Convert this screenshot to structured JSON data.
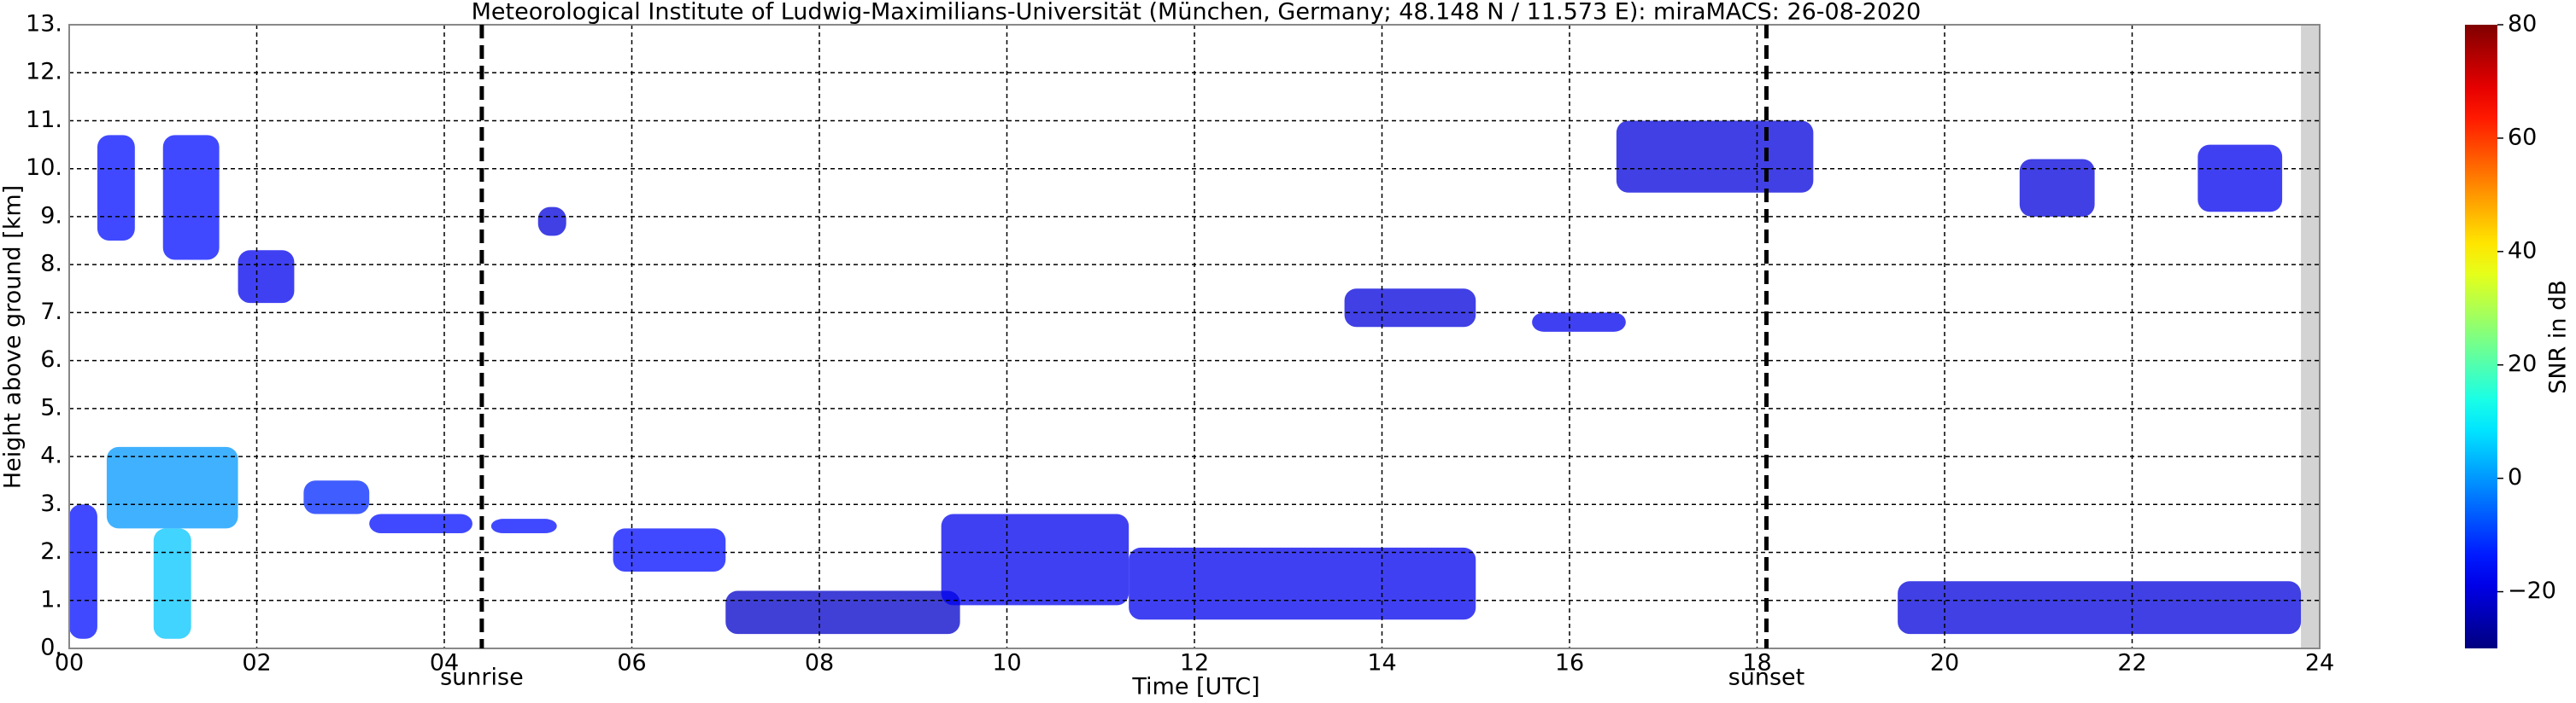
{
  "chart_data": {
    "type": "heatmap",
    "title": "Meteorological Institute of Ludwig-Maximilians-Universität (München, Germany; 48.148 N / 11.573 E):    miraMACS: 26-08-2020",
    "x_label": "Time [UTC]",
    "y_label": "Height above ground [km]",
    "colorbar_label": "SNR in dB",
    "xlim": [
      0,
      24
    ],
    "ylim": [
      0,
      13
    ],
    "clim": [
      -30,
      80
    ],
    "colormap": "jet",
    "grid": true,
    "xticks": [
      {
        "value": 0,
        "label": "00"
      },
      {
        "value": 2,
        "label": "02"
      },
      {
        "value": 4,
        "label": "04"
      },
      {
        "value": 6,
        "label": "06"
      },
      {
        "value": 8,
        "label": "08"
      },
      {
        "value": 10,
        "label": "10"
      },
      {
        "value": 12,
        "label": "12"
      },
      {
        "value": 14,
        "label": "14"
      },
      {
        "value": 16,
        "label": "16"
      },
      {
        "value": 18,
        "label": "18"
      },
      {
        "value": 20,
        "label": "20"
      },
      {
        "value": 22,
        "label": "22"
      },
      {
        "value": 24,
        "label": "24"
      }
    ],
    "yticks": [
      {
        "value": 0,
        "label": "0."
      },
      {
        "value": 1,
        "label": "1."
      },
      {
        "value": 2,
        "label": "2."
      },
      {
        "value": 3,
        "label": "3."
      },
      {
        "value": 4,
        "label": "4."
      },
      {
        "value": 5,
        "label": "5."
      },
      {
        "value": 6,
        "label": "6."
      },
      {
        "value": 7,
        "label": "7."
      },
      {
        "value": 8,
        "label": "8."
      },
      {
        "value": 9,
        "label": "9."
      },
      {
        "value": 10,
        "label": "10."
      },
      {
        "value": 11,
        "label": "11."
      },
      {
        "value": 12,
        "label": "12."
      },
      {
        "value": 13,
        "label": "13."
      }
    ],
    "cticks": [
      {
        "value": -20,
        "label": "−20"
      },
      0,
      20,
      40,
      60,
      80
    ],
    "markers": [
      {
        "label": "sunrise",
        "x": 4.4
      },
      {
        "label": "sunset",
        "x": 18.1
      }
    ],
    "no_data": [
      23.8,
      24
    ],
    "echoes": [
      {
        "x": [
          0.3,
          0.7
        ],
        "y": [
          8.5,
          10.7
        ],
        "snr": -15
      },
      {
        "x": [
          1.0,
          1.6
        ],
        "y": [
          8.1,
          10.7
        ],
        "snr": -15
      },
      {
        "x": [
          1.8,
          2.4
        ],
        "y": [
          7.2,
          8.3
        ],
        "snr": -18
      },
      {
        "x": [
          0.4,
          1.8
        ],
        "y": [
          2.5,
          4.2
        ],
        "snr": 0
      },
      {
        "x": [
          0.9,
          1.3
        ],
        "y": [
          0.2,
          2.5
        ],
        "snr": 5
      },
      {
        "x": [
          0.0,
          0.3
        ],
        "y": [
          0.2,
          3.0
        ],
        "snr": -15
      },
      {
        "x": [
          2.5,
          3.2
        ],
        "y": [
          2.8,
          3.5
        ],
        "snr": -12
      },
      {
        "x": [
          3.2,
          4.3
        ],
        "y": [
          2.4,
          2.8
        ],
        "snr": -15
      },
      {
        "x": [
          4.5,
          5.2
        ],
        "y": [
          2.4,
          2.7
        ],
        "snr": -15
      },
      {
        "x": [
          5.0,
          5.3
        ],
        "y": [
          8.6,
          9.2
        ],
        "snr": -20
      },
      {
        "x": [
          5.8,
          7.0
        ],
        "y": [
          1.6,
          2.5
        ],
        "snr": -15
      },
      {
        "x": [
          7.0,
          9.5
        ],
        "y": [
          0.3,
          1.2
        ],
        "snr": -22
      },
      {
        "x": [
          9.3,
          11.3
        ],
        "y": [
          0.9,
          2.8
        ],
        "snr": -18
      },
      {
        "x": [
          11.3,
          15.0
        ],
        "y": [
          0.6,
          2.1
        ],
        "snr": -18
      },
      {
        "x": [
          13.6,
          15.0
        ],
        "y": [
          6.7,
          7.5
        ],
        "snr": -20
      },
      {
        "x": [
          15.6,
          16.6
        ],
        "y": [
          6.6,
          7.0
        ],
        "snr": -18
      },
      {
        "x": [
          16.5,
          18.6
        ],
        "y": [
          9.5,
          11.0
        ],
        "snr": -20
      },
      {
        "x": [
          19.5,
          23.8
        ],
        "y": [
          0.3,
          1.4
        ],
        "snr": -20
      },
      {
        "x": [
          20.8,
          21.6
        ],
        "y": [
          9.0,
          10.2
        ],
        "snr": -20
      },
      {
        "x": [
          22.7,
          23.6
        ],
        "y": [
          9.1,
          10.5
        ],
        "snr": -18
      }
    ]
  }
}
